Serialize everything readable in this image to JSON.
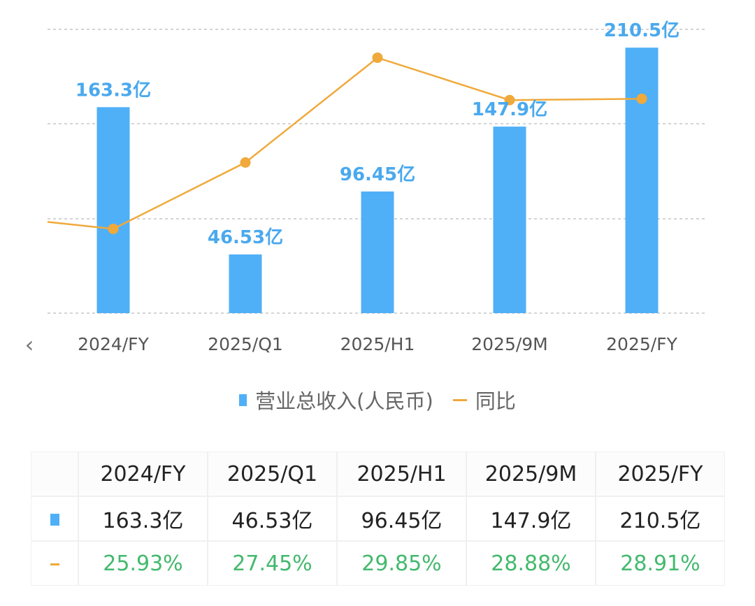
{
  "colors": {
    "bar": "#4fb0f7",
    "line": "#f0a93b",
    "bar_label": "#4aa9ee",
    "grid": "#bbbbbb",
    "pct_text": "#43b96d"
  },
  "nav": {
    "prev_label": "‹"
  },
  "chart_data": {
    "type": "bar+line",
    "categories": [
      "2024/FY",
      "2025/Q1",
      "2025/H1",
      "2025/9M",
      "2025/FY"
    ],
    "series": [
      {
        "name": "营业总收入(人民币)",
        "type": "bar",
        "values": [
          163.3,
          46.53,
          96.45,
          147.9,
          210.5
        ],
        "labels": [
          "163.3亿",
          "46.53亿",
          "96.45亿",
          "147.9亿",
          "210.5亿"
        ]
      },
      {
        "name": "同比",
        "type": "line",
        "values": [
          25.93,
          27.45,
          29.85,
          28.88,
          28.91
        ],
        "labels": [
          "25.93%",
          "27.45%",
          "29.85%",
          "28.88%",
          "28.91%"
        ]
      }
    ],
    "bar_axis_range": [
      0,
      225
    ],
    "line_axis_range": [
      24,
      30.5
    ],
    "grid": true,
    "legend_position": "bottom"
  },
  "legend": {
    "bar_label": "营业总收入(人民币)",
    "line_label": "同比"
  },
  "table": {
    "headers": [
      "2024/FY",
      "2025/Q1",
      "2025/H1",
      "2025/9M",
      "2025/FY"
    ],
    "rows": [
      {
        "marker": "bar",
        "cells": [
          "163.3亿",
          "46.53亿",
          "96.45亿",
          "147.9亿",
          "210.5亿"
        ]
      },
      {
        "marker": "line",
        "cells": [
          "25.93%",
          "27.45%",
          "29.85%",
          "28.88%",
          "28.91%"
        ]
      }
    ]
  }
}
